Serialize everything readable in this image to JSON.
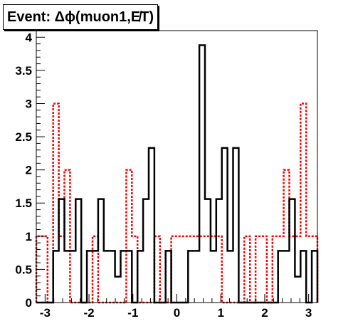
{
  "title": "Event: Δϕ(muon1,E̸T)",
  "colors": {
    "series_black": "#000000",
    "series_red": "#ff0000",
    "frame": "#000000"
  },
  "chart_data": {
    "type": "step-histogram",
    "title": "Event: Δϕ(muon1,E̸T)",
    "xlim": [
      -3.2,
      3.2
    ],
    "ylim": [
      0,
      4.1
    ],
    "x_ticks": [
      "-3",
      "-2",
      "-1",
      "0",
      "1",
      "2",
      "3"
    ],
    "x_tick_values": [
      -3,
      -2,
      -1,
      0,
      1,
      2,
      3
    ],
    "y_ticks": [
      "0",
      "0.5",
      "1",
      "1.5",
      "2",
      "2.5",
      "3",
      "3.5",
      "4"
    ],
    "y_tick_values": [
      0,
      0.5,
      1,
      1.5,
      2,
      2.5,
      3,
      3.5,
      4
    ],
    "bin_edges": [
      -3.2,
      -3.072,
      -2.944,
      -2.816,
      -2.688,
      -2.56,
      -2.432,
      -2.304,
      -2.176,
      -2.048,
      -1.92,
      -1.792,
      -1.664,
      -1.536,
      -1.408,
      -1.28,
      -1.152,
      -1.024,
      -0.896,
      -0.768,
      -0.64,
      -0.512,
      -0.384,
      -0.256,
      -0.128,
      0.0,
      0.128,
      0.256,
      0.384,
      0.512,
      0.64,
      0.768,
      0.896,
      1.024,
      1.152,
      1.28,
      1.408,
      1.536,
      1.664,
      1.792,
      1.92,
      2.048,
      2.176,
      2.304,
      2.432,
      2.56,
      2.688,
      2.816,
      2.944,
      3.072,
      3.2
    ],
    "series": [
      {
        "color": "#000000",
        "style": "solid",
        "values": [
          0,
          0,
          0,
          0.78,
          1.56,
          0.78,
          0.78,
          1.56,
          0,
          0.78,
          0.78,
          1.56,
          0.78,
          0.78,
          0.39,
          0.78,
          0.78,
          0,
          0.78,
          1.56,
          2.33,
          0,
          0,
          0.78,
          0,
          0,
          0,
          0.78,
          0.78,
          3.88,
          1.56,
          0.78,
          1.56,
          2.33,
          0.78,
          2.33,
          0,
          0,
          0,
          0,
          0,
          0,
          0,
          0.78,
          0.78,
          1.56,
          0.39,
          0.78,
          0,
          0.78
        ]
      },
      {
        "color": "#ff0000",
        "style": "dotted",
        "values": [
          1,
          1,
          0,
          3,
          1,
          2,
          0,
          0,
          0,
          0,
          1,
          0,
          0,
          0,
          0,
          0,
          2,
          1,
          0,
          0,
          0,
          1,
          0,
          0,
          1,
          1,
          1,
          1,
          1,
          1,
          1,
          1,
          1,
          0,
          0,
          0,
          0,
          1,
          0,
          1,
          1,
          0,
          1,
          1,
          2,
          1,
          1,
          3,
          1,
          1
        ]
      }
    ]
  }
}
